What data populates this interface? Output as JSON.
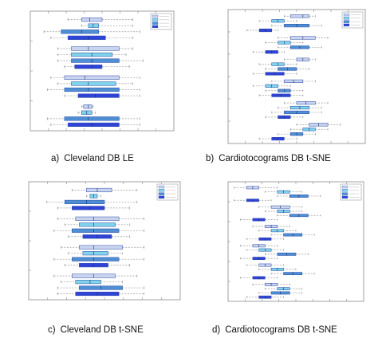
{
  "legend_swatches": [
    "#c9d4ef",
    "#7fd3ea",
    "#4d8fd2",
    "#2f43d6"
  ],
  "box_stroke": "#2b4aa8",
  "colors": {
    "whisker": "#9a9a9a",
    "axis": "#8a8a8a",
    "caption": "#111111"
  },
  "chart_data": [
    {
      "type": "boxplot",
      "caption_letter": "a)",
      "caption": "Cleveland DB LE",
      "xlim": [
        -1.2,
        0.9
      ],
      "legend": "top-right",
      "group_gap": 0.8,
      "groups": [
        [
          {
            "c": 0,
            "q1": -0.45,
            "med": -0.33,
            "q3": -0.15,
            "lo": -0.65,
            "hi": 0.3
          },
          {
            "c": 1,
            "q1": -0.35,
            "med": -0.28,
            "q3": -0.2,
            "lo": -0.45,
            "hi": 0.3
          },
          {
            "c": 2,
            "q1": -0.75,
            "med": -0.45,
            "q3": -0.2,
            "lo": -1.0,
            "hi": 0.4
          },
          {
            "c": 3,
            "q1": -0.65,
            "med": -0.35,
            "q3": -0.1,
            "lo": -0.9,
            "hi": 0.3
          }
        ],
        [
          {
            "c": 0,
            "q1": -0.6,
            "med": -0.35,
            "q3": 0.1,
            "lo": -0.8,
            "hi": 0.3
          },
          {
            "c": 1,
            "q1": -0.6,
            "med": -0.3,
            "q3": 0.0,
            "lo": -0.8,
            "hi": 0.2
          },
          {
            "c": 2,
            "q1": -0.6,
            "med": -0.3,
            "q3": 0.1,
            "lo": -0.8,
            "hi": 0.45
          },
          {
            "c": 3,
            "q1": -0.55,
            "med": -0.3,
            "q3": -0.15,
            "lo": -0.7,
            "hi": 0.25
          }
        ],
        [
          {
            "c": 0,
            "q1": -0.7,
            "med": -0.4,
            "q3": 0.1,
            "lo": -0.9,
            "hi": 0.4
          },
          {
            "c": 1,
            "q1": -0.6,
            "med": -0.35,
            "q3": 0.05,
            "lo": -0.8,
            "hi": 0.3
          },
          {
            "c": 2,
            "q1": -0.7,
            "med": -0.35,
            "q3": 0.1,
            "lo": -0.95,
            "hi": 0.4
          },
          {
            "c": 3,
            "q1": -0.5,
            "med": -0.25,
            "q3": 0.1,
            "lo": -0.7,
            "hi": 0.4
          }
        ],
        [
          {
            "c": 0,
            "q1": -0.42,
            "med": -0.35,
            "q3": -0.3,
            "lo": -0.45,
            "hi": -0.28
          },
          {
            "c": 1,
            "q1": -0.45,
            "med": -0.38,
            "q3": -0.3,
            "lo": -0.5,
            "hi": -0.25
          },
          {
            "c": 2,
            "q1": -0.7,
            "med": -0.35,
            "q3": 0.1,
            "lo": -0.95,
            "hi": 0.4
          },
          {
            "c": 3,
            "q1": -0.65,
            "med": -0.3,
            "q3": 0.1,
            "lo": -0.9,
            "hi": 0.4
          }
        ]
      ]
    },
    {
      "type": "boxplot",
      "caption_letter": "b)",
      "caption": "Cardiotocograms DB t-SNE",
      "xlim": [
        -1.2,
        1.0
      ],
      "legend": "top-right",
      "group_gap": 0.6,
      "groups": [
        [
          {
            "c": 0,
            "q1": -0.2,
            "med": 0.0,
            "q3": 0.1,
            "lo": -0.3,
            "hi": 0.2
          },
          {
            "c": 1,
            "q1": -0.5,
            "med": -0.4,
            "q3": -0.3,
            "lo": -0.7,
            "hi": -0.1
          },
          {
            "c": 2,
            "q1": -0.3,
            "med": -0.1,
            "q3": 0.1,
            "lo": -0.5,
            "hi": 0.3
          },
          {
            "c": 3,
            "q1": -0.7,
            "med": -0.6,
            "q3": -0.5,
            "lo": -0.9,
            "hi": -0.4
          }
        ],
        [
          {
            "c": 0,
            "q1": -0.2,
            "med": 0.0,
            "q3": 0.2,
            "lo": -0.4,
            "hi": 0.4
          },
          {
            "c": 1,
            "q1": -0.4,
            "med": -0.3,
            "q3": -0.2,
            "lo": -0.6,
            "hi": 0.0
          },
          {
            "c": 2,
            "q1": -0.2,
            "med": -0.05,
            "q3": 0.1,
            "lo": -0.4,
            "hi": 0.3
          },
          {
            "c": 3,
            "q1": -0.6,
            "med": -0.5,
            "q3": -0.4,
            "lo": -0.8,
            "hi": -0.3
          }
        ],
        [
          {
            "c": 0,
            "q1": -0.1,
            "med": 0.0,
            "q3": 0.1,
            "lo": -0.3,
            "hi": 0.2
          },
          {
            "c": 1,
            "q1": -0.5,
            "med": -0.4,
            "q3": -0.3,
            "lo": -0.7,
            "hi": -0.1
          },
          {
            "c": 2,
            "q1": -0.4,
            "med": -0.25,
            "q3": -0.1,
            "lo": -0.6,
            "hi": 0.1
          },
          {
            "c": 3,
            "q1": -0.6,
            "med": -0.45,
            "q3": -0.3,
            "lo": -0.8,
            "hi": -0.1
          }
        ],
        [
          {
            "c": 0,
            "q1": -0.3,
            "med": -0.15,
            "q3": 0.0,
            "lo": -0.5,
            "hi": 0.2
          },
          {
            "c": 1,
            "q1": -0.6,
            "med": -0.5,
            "q3": -0.4,
            "lo": -0.8,
            "hi": -0.2
          },
          {
            "c": 2,
            "q1": -0.4,
            "med": -0.3,
            "q3": -0.2,
            "lo": -0.6,
            "hi": 0.0
          },
          {
            "c": 3,
            "q1": -0.5,
            "med": -0.35,
            "q3": -0.2,
            "lo": -0.7,
            "hi": 0.0
          }
        ],
        [
          {
            "c": 0,
            "q1": -0.1,
            "med": 0.05,
            "q3": 0.2,
            "lo": -0.3,
            "hi": 0.4
          },
          {
            "c": 1,
            "q1": -0.2,
            "med": -0.05,
            "q3": 0.1,
            "lo": -0.4,
            "hi": 0.3
          },
          {
            "c": 2,
            "q1": -0.3,
            "med": -0.1,
            "q3": 0.1,
            "lo": -0.5,
            "hi": 0.3
          },
          {
            "c": 3,
            "q1": -0.4,
            "med": -0.3,
            "q3": -0.2,
            "lo": -0.6,
            "hi": 0.0
          }
        ],
        [
          {
            "c": 0,
            "q1": 0.1,
            "med": 0.25,
            "q3": 0.4,
            "lo": -0.1,
            "hi": 0.6
          },
          {
            "c": 1,
            "q1": 0.0,
            "med": 0.1,
            "q3": 0.2,
            "lo": -0.2,
            "hi": 0.4
          },
          {
            "c": 2,
            "q1": -0.2,
            "med": -0.1,
            "q3": 0.0,
            "lo": -0.4,
            "hi": 0.2
          },
          {
            "c": 3,
            "q1": -0.5,
            "med": -0.4,
            "q3": -0.3,
            "lo": -0.7,
            "hi": -0.1
          }
        ]
      ]
    },
    {
      "type": "boxplot",
      "caption_letter": "c)",
      "caption": "Cleveland DB t-SNE",
      "xlim": [
        -1.2,
        0.9
      ],
      "legend": "top-right",
      "group_gap": 0.8,
      "groups": [
        [
          {
            "c": 0,
            "q1": -0.4,
            "med": -0.25,
            "q3": -0.05,
            "lo": -0.6,
            "hi": 0.3
          },
          {
            "c": 1,
            "q1": -0.35,
            "med": -0.3,
            "q3": -0.25,
            "lo": -0.4,
            "hi": -0.2
          },
          {
            "c": 2,
            "q1": -0.7,
            "med": -0.4,
            "q3": -0.15,
            "lo": -0.95,
            "hi": 0.3
          },
          {
            "c": 3,
            "q1": -0.6,
            "med": -0.35,
            "q3": -0.15,
            "lo": -0.8,
            "hi": 0.2
          }
        ],
        [
          {
            "c": 0,
            "q1": -0.55,
            "med": -0.3,
            "q3": 0.05,
            "lo": -0.8,
            "hi": 0.4
          },
          {
            "c": 1,
            "q1": -0.5,
            "med": -0.3,
            "q3": 0.0,
            "lo": -0.7,
            "hi": 0.2
          },
          {
            "c": 2,
            "q1": -0.6,
            "med": -0.3,
            "q3": 0.05,
            "lo": -0.85,
            "hi": 0.4
          },
          {
            "c": 3,
            "q1": -0.45,
            "med": -0.25,
            "q3": -0.05,
            "lo": -0.65,
            "hi": 0.2
          }
        ],
        [
          {
            "c": 0,
            "q1": -0.5,
            "med": -0.3,
            "q3": 0.1,
            "lo": -0.75,
            "hi": 0.4
          },
          {
            "c": 1,
            "q1": -0.45,
            "med": -0.3,
            "q3": -0.1,
            "lo": -0.65,
            "hi": 0.1
          },
          {
            "c": 2,
            "q1": -0.6,
            "med": -0.3,
            "q3": 0.05,
            "lo": -0.85,
            "hi": 0.4
          },
          {
            "c": 3,
            "q1": -0.5,
            "med": -0.3,
            "q3": -0.1,
            "lo": -0.7,
            "hi": 0.2
          }
        ],
        [
          {
            "c": 0,
            "q1": -0.6,
            "med": -0.3,
            "q3": 0.0,
            "lo": -0.85,
            "hi": 0.3
          },
          {
            "c": 1,
            "q1": -0.55,
            "med": -0.35,
            "q3": -0.2,
            "lo": -0.75,
            "hi": 0.1
          },
          {
            "c": 2,
            "q1": -0.5,
            "med": -0.2,
            "q3": 0.1,
            "lo": -0.8,
            "hi": 0.4
          },
          {
            "c": 3,
            "q1": -0.55,
            "med": -0.25,
            "q3": 0.05,
            "lo": -0.8,
            "hi": 0.4
          }
        ]
      ]
    },
    {
      "type": "boxplot",
      "caption_letter": "d)",
      "caption": "Cardiotocograms DB t-SNE",
      "xlim": [
        -1.2,
        1.0
      ],
      "legend": "top-right",
      "group_gap": 0.6,
      "groups": [
        [
          {
            "c": 0,
            "q1": -0.9,
            "med": -0.8,
            "q3": -0.7,
            "lo": -1.1,
            "hi": -0.4
          },
          {
            "c": 1,
            "q1": -0.4,
            "med": -0.3,
            "q3": -0.2,
            "lo": -0.6,
            "hi": 0.0
          },
          {
            "c": 2,
            "q1": -0.2,
            "med": -0.05,
            "q3": 0.1,
            "lo": -0.4,
            "hi": 0.3
          },
          {
            "c": 3,
            "q1": -0.9,
            "med": -0.8,
            "q3": -0.7,
            "lo": -1.1,
            "hi": -0.5
          }
        ],
        [
          {
            "c": 0,
            "q1": -0.5,
            "med": -0.35,
            "q3": -0.2,
            "lo": -0.7,
            "hi": 0.0
          },
          {
            "c": 1,
            "q1": -0.4,
            "med": -0.3,
            "q3": -0.2,
            "lo": -0.6,
            "hi": 0.0
          },
          {
            "c": 2,
            "q1": -0.2,
            "med": -0.05,
            "q3": 0.1,
            "lo": -0.4,
            "hi": 0.3
          },
          {
            "c": 3,
            "q1": -0.8,
            "med": -0.7,
            "q3": -0.6,
            "lo": -1.0,
            "hi": -0.4
          }
        ],
        [
          {
            "c": 0,
            "q1": -0.6,
            "med": -0.5,
            "q3": -0.4,
            "lo": -0.8,
            "hi": -0.2
          },
          {
            "c": 1,
            "q1": -0.5,
            "med": -0.4,
            "q3": -0.3,
            "lo": -0.7,
            "hi": -0.1
          },
          {
            "c": 2,
            "q1": -0.3,
            "med": -0.15,
            "q3": 0.0,
            "lo": -0.5,
            "hi": 0.2
          },
          {
            "c": 3,
            "q1": -0.7,
            "med": -0.6,
            "q3": -0.5,
            "lo": -0.9,
            "hi": -0.3
          }
        ],
        [
          {
            "c": 0,
            "q1": -0.8,
            "med": -0.7,
            "q3": -0.6,
            "lo": -1.0,
            "hi": -0.4
          },
          {
            "c": 1,
            "q1": -0.7,
            "med": -0.6,
            "q3": -0.5,
            "lo": -0.9,
            "hi": -0.3
          },
          {
            "c": 2,
            "q1": -0.4,
            "med": -0.25,
            "q3": -0.1,
            "lo": -0.6,
            "hi": 0.1
          },
          {
            "c": 3,
            "q1": -0.8,
            "med": -0.7,
            "q3": -0.6,
            "lo": -1.0,
            "hi": -0.4
          }
        ],
        [
          {
            "c": 0,
            "q1": -0.7,
            "med": -0.6,
            "q3": -0.5,
            "lo": -0.9,
            "hi": -0.3
          },
          {
            "c": 1,
            "q1": -0.5,
            "med": -0.4,
            "q3": -0.3,
            "lo": -0.7,
            "hi": -0.1
          },
          {
            "c": 2,
            "q1": -0.3,
            "med": -0.15,
            "q3": 0.0,
            "lo": -0.5,
            "hi": 0.2
          },
          {
            "c": 3,
            "q1": -0.8,
            "med": -0.7,
            "q3": -0.6,
            "lo": -1.0,
            "hi": -0.4
          }
        ],
        [
          {
            "c": 0,
            "q1": -0.6,
            "med": -0.5,
            "q3": -0.4,
            "lo": -0.8,
            "hi": -0.2
          },
          {
            "c": 1,
            "q1": -0.4,
            "med": -0.3,
            "q3": -0.2,
            "lo": -0.6,
            "hi": 0.0
          },
          {
            "c": 2,
            "q1": -0.5,
            "med": -0.35,
            "q3": -0.2,
            "lo": -0.7,
            "hi": 0.0
          },
          {
            "c": 3,
            "q1": -0.7,
            "med": -0.6,
            "q3": -0.5,
            "lo": -0.9,
            "hi": -0.3
          }
        ]
      ]
    }
  ]
}
